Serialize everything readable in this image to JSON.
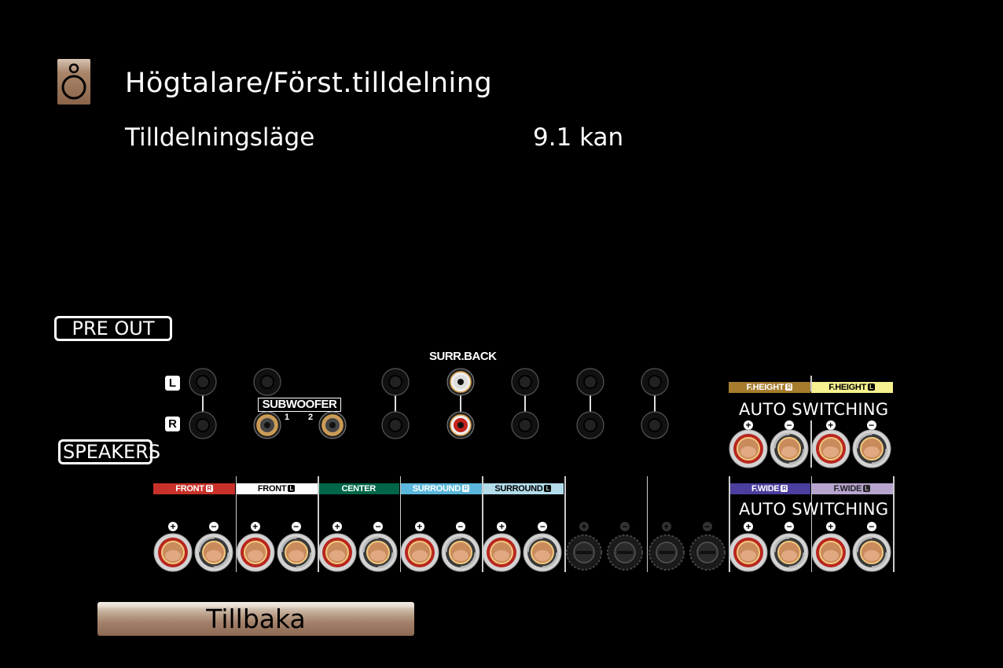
{
  "header": {
    "title": "Högtalare/Först.tilldelning",
    "icon": "speaker-icon"
  },
  "setting": {
    "label": "Tilldelningsläge",
    "value": "9.1 kan"
  },
  "pre_out": {
    "label": "PRE OUT",
    "left_label": "L",
    "right_label": "R",
    "subwoofer_label": "SUBWOOFER",
    "sub1": "1",
    "sub2": "2",
    "surr_back_label": "SURR.BACK"
  },
  "speakers": {
    "label": "SPEAKERS",
    "auto_switching": "AUTO SWITCHING",
    "channels": [
      {
        "name": "FRONT",
        "side": "R",
        "color": "#c8322a",
        "text": "#ffffff",
        "active": true
      },
      {
        "name": "FRONT",
        "side": "L",
        "color": "#ffffff",
        "text": "#000000",
        "active": true
      },
      {
        "name": "CENTER",
        "side": "",
        "color": "#00664a",
        "text": "#ffffff",
        "active": true
      },
      {
        "name": "SURROUND",
        "side": "R",
        "color": "#5bb8dc",
        "text": "#ffffff",
        "active": true
      },
      {
        "name": "SURROUND",
        "side": "L",
        "color": "#b2dcea",
        "text": "#000000",
        "active": true
      },
      {
        "name": "",
        "side": "",
        "color": "",
        "text": "",
        "active": false
      },
      {
        "name": "",
        "side": "",
        "color": "",
        "text": "",
        "active": false
      },
      {
        "name": "F.WIDE",
        "side": "R",
        "color": "#4a3f9e",
        "text": "#ffffff",
        "active": true
      },
      {
        "name": "F.WIDE",
        "side": "L",
        "color": "#b7a5cf",
        "text": "#222222",
        "active": true
      }
    ],
    "height_channels": [
      {
        "name": "F.HEIGHT",
        "side": "R",
        "color": "#a67c2e",
        "text": "#ffffff",
        "active": true
      },
      {
        "name": "F.HEIGHT",
        "side": "L",
        "color": "#f6f08f",
        "text": "#000000",
        "active": true
      }
    ]
  },
  "back_button": {
    "label": "Tillbaka"
  }
}
